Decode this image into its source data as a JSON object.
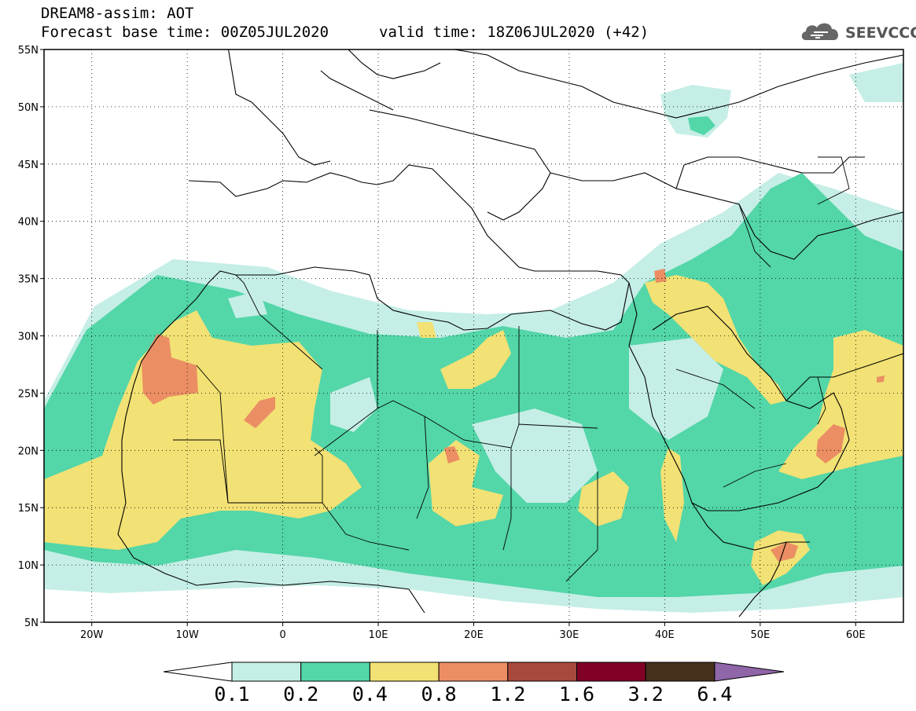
{
  "header": {
    "line1": "DREAM8-assim: AOT",
    "line2": "Forecast base time: 00Z05JUL2020",
    "valid": "valid time: 18Z06JUL2020 (+42)"
  },
  "logo": {
    "text": "SEEVCCC",
    "icon": "cloud-icon"
  },
  "map": {
    "lat_range": [
      5,
      55
    ],
    "lon_range": [
      -25,
      65
    ],
    "lat_labels": [
      "5N",
      "10N",
      "15N",
      "20N",
      "25N",
      "30N",
      "35N",
      "40N",
      "45N",
      "50N",
      "55N"
    ],
    "lon_labels": [
      "20W",
      "10W",
      "0",
      "10E",
      "20E",
      "30E",
      "40E",
      "50E",
      "60E"
    ]
  },
  "colorbar": {
    "labels": [
      "0.1",
      "0.2",
      "0.4",
      "0.8",
      "1.2",
      "1.6",
      "3.2",
      "6.4"
    ],
    "colors": [
      "#ffffff",
      "#c5eee6",
      "#53d6a8",
      "#f2e174",
      "#eb8e63",
      "#a8493d",
      "#800026",
      "#47311c",
      "#8f66a8"
    ]
  }
}
